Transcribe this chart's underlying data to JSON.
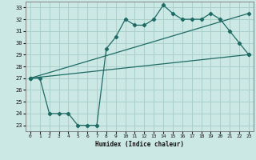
{
  "title": "",
  "xlabel": "Humidex (Indice chaleur)",
  "background_color": "#cce8e4",
  "grid_color": "#aacfcb",
  "line_color": "#1e6b65",
  "xlim": [
    -0.5,
    23.5
  ],
  "ylim": [
    22.5,
    33.5
  ],
  "xticks": [
    0,
    1,
    2,
    3,
    4,
    5,
    6,
    7,
    8,
    9,
    10,
    11,
    12,
    13,
    14,
    15,
    16,
    17,
    18,
    19,
    20,
    21,
    22,
    23
  ],
  "yticks": [
    23,
    24,
    25,
    26,
    27,
    28,
    29,
    30,
    31,
    32,
    33
  ],
  "series1_x": [
    0,
    1,
    2,
    3,
    4,
    5,
    6,
    7,
    8,
    9,
    10,
    11,
    12,
    13,
    14,
    15,
    16,
    17,
    18,
    19,
    20,
    21,
    22,
    23
  ],
  "series1_y": [
    27.0,
    27.0,
    24.0,
    24.0,
    24.0,
    23.0,
    23.0,
    23.0,
    29.5,
    30.5,
    32.0,
    31.5,
    31.5,
    32.0,
    33.2,
    32.5,
    32.0,
    32.0,
    32.0,
    32.5,
    32.0,
    31.0,
    30.0,
    29.0
  ],
  "series2_x": [
    0,
    23
  ],
  "series2_y": [
    27.0,
    29.0
  ],
  "series3_x": [
    0,
    23
  ],
  "series3_y": [
    27.0,
    32.5
  ]
}
